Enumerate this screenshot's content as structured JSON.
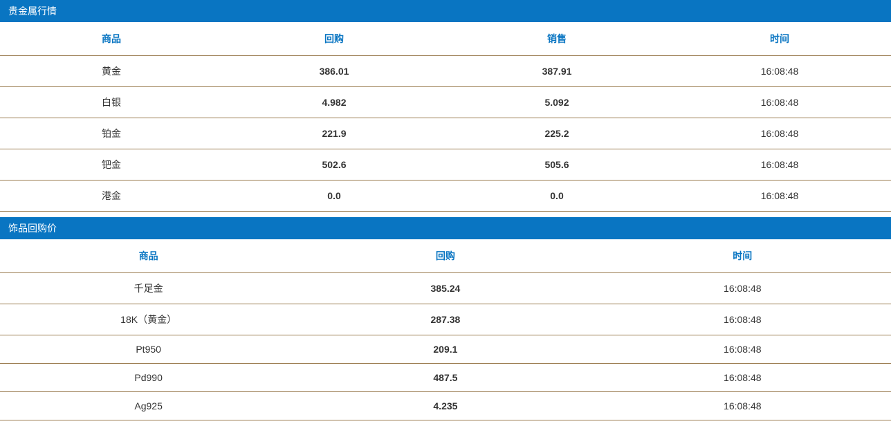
{
  "colors": {
    "header_bg": "#0975c2",
    "header_text": "#ffffff",
    "th_text": "#0975c2",
    "border": "#9a7b4f",
    "highlight": "#e60012",
    "normal_text": "#333333",
    "background": "#ffffff"
  },
  "precious_metals": {
    "title": "贵金属行情",
    "columns": {
      "product": "商品",
      "buyback": "回购",
      "sale": "销售",
      "time": "时间"
    },
    "rows": [
      {
        "product": "黄金",
        "buyback": "386.01",
        "sale": "387.91",
        "time": "16:08:48",
        "highlight": true
      },
      {
        "product": "白银",
        "buyback": "4.982",
        "sale": "5.092",
        "time": "16:08:48",
        "highlight": true
      },
      {
        "product": "铂金",
        "buyback": "221.9",
        "sale": "225.2",
        "time": "16:08:48",
        "highlight": false
      },
      {
        "product": "钯金",
        "buyback": "502.6",
        "sale": "505.6",
        "time": "16:08:48",
        "highlight": false
      },
      {
        "product": "港金",
        "buyback": "0.0",
        "sale": "0.0",
        "time": "16:08:48",
        "highlight": false
      }
    ]
  },
  "jewelry": {
    "title": "饰品回购价",
    "columns": {
      "product": "商品",
      "buyback": "回购",
      "time": "时间"
    },
    "rows": [
      {
        "product": "千足金",
        "buyback": "385.24",
        "time": "16:08:48",
        "highlight": true
      },
      {
        "product": "18K（黄金）",
        "buyback": "287.38",
        "time": "16:08:48",
        "highlight": true
      },
      {
        "product": "Pt950",
        "buyback": "209.1",
        "time": "16:08:48",
        "highlight": false
      },
      {
        "product": "Pd990",
        "buyback": "487.5",
        "time": "16:08:48",
        "highlight": false
      },
      {
        "product": "Ag925",
        "buyback": "4.235",
        "time": "16:08:48",
        "highlight": true
      }
    ]
  }
}
